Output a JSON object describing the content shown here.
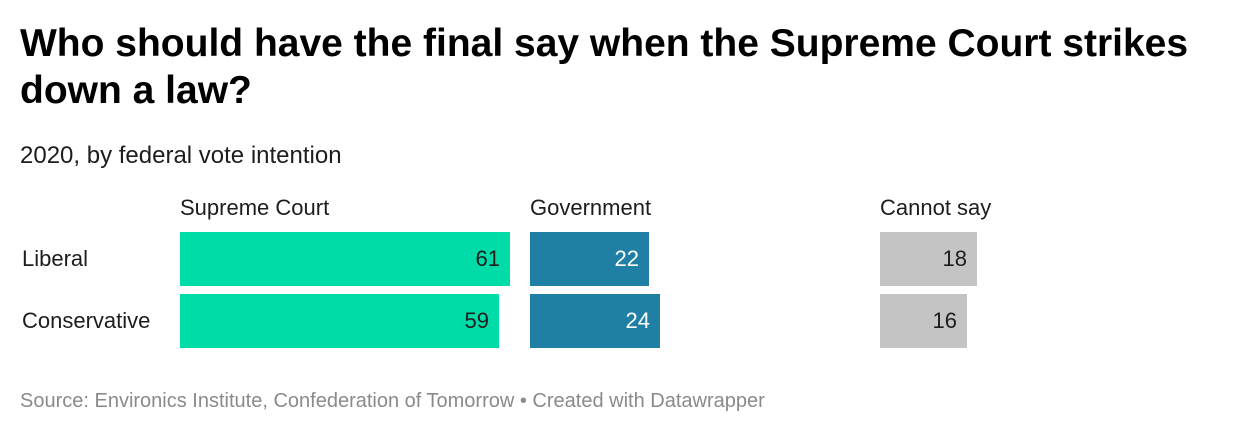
{
  "chart_data": {
    "type": "bar",
    "title": "Who should have the final say when the Supreme Court strikes down a law?",
    "subtitle": "2020, by federal vote intention",
    "categories": [
      "Liberal",
      "Conservative"
    ],
    "series": [
      {
        "name": "Supreme Court",
        "values": [
          61,
          59
        ],
        "color": "#00dca8",
        "text_color": "#1d1d1d"
      },
      {
        "name": "Government",
        "values": [
          22,
          24
        ],
        "color": "#1f7fa4",
        "text_color": "#ffffff"
      },
      {
        "name": "Cannot say",
        "values": [
          18,
          16
        ],
        "color": "#c4c4c4",
        "text_color": "#1d1d1d"
      }
    ],
    "xlim": [
      0,
      61
    ],
    "grid": false,
    "legend": "column headers"
  },
  "footer": {
    "source": "Source: Environics Institute, Confederation of Tomorrow • Created with Datawrapper"
  }
}
